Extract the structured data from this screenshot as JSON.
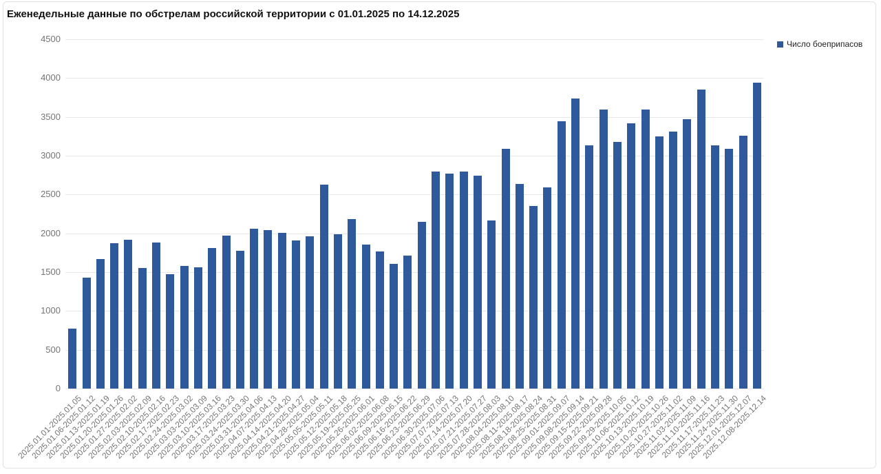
{
  "colors": {
    "bar": "#2e5a9c",
    "grid": "#e7e7e7",
    "axis_label": "#757575",
    "title": "#111111",
    "border": "#e2e2e2",
    "background": "#ffffff"
  },
  "chart_data": {
    "type": "bar",
    "title": "Еженедельные данные по обстрелам российской территории с 01.01.2025 по 14.12.2025",
    "legend_position": "top-right",
    "grid": "horizontal-only",
    "ylim": [
      0,
      4500
    ],
    "ytick_step": 500,
    "xlabel": "",
    "ylabel": "",
    "categories": [
      "2025.01.01-2025.01.05",
      "2025.01.06-2025.01.12",
      "2025.01.13-2025.01.19",
      "2025.01.20-2025.01.26",
      "2025.01.27-2025.02.02",
      "2025.02.03-2025.02.09",
      "2025.02.10-2025.02.16",
      "2025.02.17-2025.02.23",
      "2025.02.24-2025.03.02",
      "2025.03.03-2025.03.09",
      "2025.03.10-2025.03.16",
      "2025.03.17-2025.03.23",
      "2025.03.24-2025.03.30",
      "2025.03.31-2025.04.06",
      "2025.04.07-2025.04.13",
      "2025.04.14-2025.04.20",
      "2025.04.21-2025.04.27",
      "2025.04.28-2025.05.04",
      "2025.05.05-2025.05.11",
      "2025.05.12-2025.05.18",
      "2025.05.19-2025.05.25",
      "2025.05.26-2025.06.01",
      "2025.06.02-2025.06.08",
      "2025.06.09-2025.06.15",
      "2025.06.16-2025.06.22",
      "2025.06.23-2025.06.29",
      "2025.06.30-2025.07.06",
      "2025.07.07-2025.07.13",
      "2025.07.14-2025.07.20",
      "2025.07.21-2025.07.27",
      "2025.07.28-2025.08.03",
      "2025.08.04-2025.08.10",
      "2025.08.11-2025.08.17",
      "2025.08.18-2025.08.24",
      "2025.08.25-2025.08.31",
      "2025.09.01-2025.09.07",
      "2025.09.08-2025.09.14",
      "2025.09.15-2025.09.21",
      "2025.09.22-2025.09.28",
      "2025.09.29-2025.10.05",
      "2025.10.06-2025.10.12",
      "2025.10.13-2025.10.19",
      "2025.10.20-2025.10.26",
      "2025.10.27-2025.11.02",
      "2025.11.03-2025.11.09",
      "2025.11.10-2025.11.16",
      "2025.11.17-2025.11.23",
      "2025.11.24-2025.11.30",
      "2025.12.01-2025.12.07",
      "2025.12.08-2025.12.14"
    ],
    "series": [
      {
        "name": "Число боеприпасов",
        "values": [
          775,
          1430,
          1670,
          1875,
          1920,
          1550,
          1885,
          1470,
          1580,
          1565,
          1815,
          1970,
          1775,
          2060,
          2040,
          2010,
          1905,
          1965,
          2625,
          1985,
          2180,
          1855,
          1770,
          1610,
          1715,
          2145,
          2800,
          2770,
          2800,
          2740,
          2165,
          3085,
          2640,
          2350,
          2590,
          3445,
          3740,
          3135,
          3595,
          3180,
          3415,
          3595,
          3250,
          3310,
          3470,
          3850,
          3130,
          3085,
          3255,
          3940
        ]
      }
    ]
  }
}
